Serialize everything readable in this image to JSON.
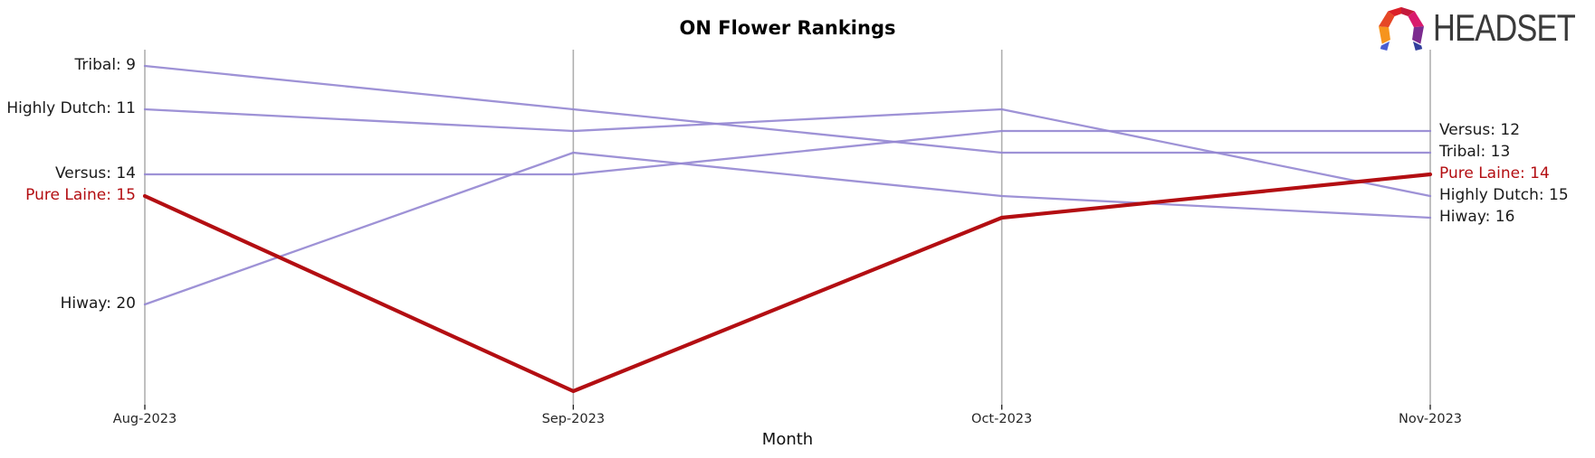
{
  "header": {
    "title": "ON Flower Rankings",
    "brand": "HEADSET"
  },
  "axis": {
    "xlabel": "Month"
  },
  "colors": {
    "line_purple": "#9486d1",
    "highlight_red": "#b30e12",
    "axis_gray": "#b0b0b0",
    "tick_black": "#262626",
    "label_black": "#1a1a1a"
  },
  "chart_data": {
    "type": "line",
    "subtype": "bump-ranking",
    "title": "ON Flower Rankings",
    "xlabel": "Month",
    "ylabel": "",
    "categories": [
      "Aug-2023",
      "Sep-2023",
      "Oct-2023",
      "Nov-2023"
    ],
    "y_axis": {
      "unit": "rank",
      "inverted": true,
      "ylim": [
        8.25,
        24.75
      ],
      "grid": false
    },
    "legend_position": "none",
    "series": [
      {
        "name": "Tribal",
        "values": [
          9,
          11,
          13,
          13
        ],
        "color": "#9486d1",
        "width": 2.3,
        "highlight": false
      },
      {
        "name": "Highly Dutch",
        "values": [
          11,
          12,
          11,
          15
        ],
        "color": "#9486d1",
        "width": 2.3,
        "highlight": false
      },
      {
        "name": "Versus",
        "values": [
          14,
          14,
          12,
          12
        ],
        "color": "#9486d1",
        "width": 2.3,
        "highlight": false
      },
      {
        "name": "Hiway",
        "values": [
          20,
          13,
          15,
          16
        ],
        "color": "#9486d1",
        "width": 2.3,
        "highlight": false
      },
      {
        "name": "Pure Laine",
        "values": [
          15,
          24,
          16,
          14
        ],
        "color": "#b30e12",
        "width": 4.2,
        "highlight": true
      }
    ],
    "left_labels": [
      {
        "text": "Tribal: 9",
        "rank": 9,
        "color": "#1a1a1a"
      },
      {
        "text": "Highly Dutch: 11",
        "rank": 11,
        "color": "#1a1a1a"
      },
      {
        "text": "Versus: 14",
        "rank": 14,
        "color": "#1a1a1a"
      },
      {
        "text": "Pure Laine: 15",
        "rank": 15,
        "color": "#b30e12"
      },
      {
        "text": "Hiway: 20",
        "rank": 20,
        "color": "#1a1a1a"
      }
    ],
    "right_labels": [
      {
        "text": "Versus: 12",
        "rank": 12,
        "color": "#1a1a1a"
      },
      {
        "text": "Tribal: 13",
        "rank": 13,
        "color": "#1a1a1a"
      },
      {
        "text": "Pure Laine: 14",
        "rank": 14,
        "color": "#b30e12"
      },
      {
        "text": "Highly Dutch: 15",
        "rank": 15,
        "color": "#1a1a1a"
      },
      {
        "text": "Hiway: 16",
        "rank": 16,
        "color": "#1a1a1a"
      }
    ]
  }
}
